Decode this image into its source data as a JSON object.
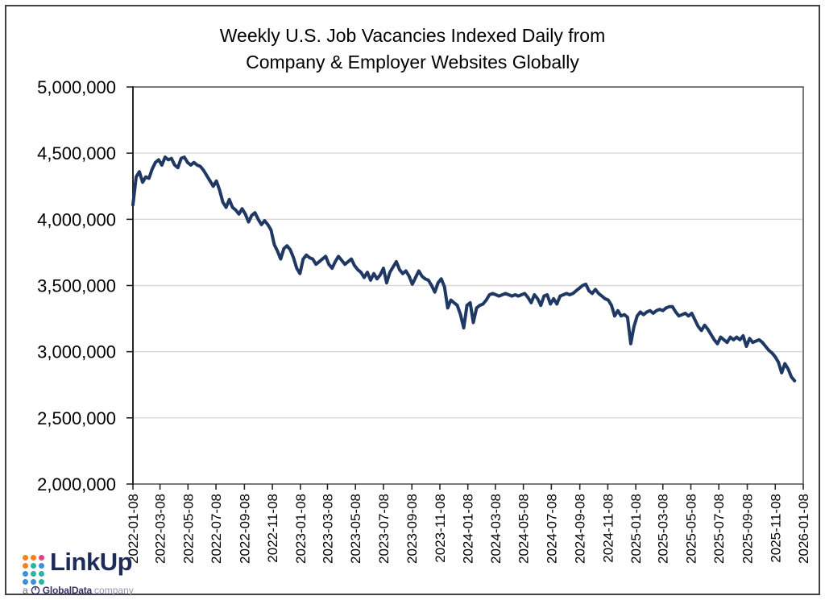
{
  "page": {
    "background": "#ffffff",
    "border_color": "#3f3f46"
  },
  "title": {
    "line1": "Weekly U.S. Job Vacancies Indexed Daily from",
    "line2": "Company & Employer Websites Globally"
  },
  "chart_data": {
    "type": "line",
    "title": "Weekly U.S. Job Vacancies Indexed Daily from Company & Employer Websites Globally",
    "xlabel": "",
    "ylabel": "",
    "x_start": "2022-01-08",
    "x_step_days": 7,
    "x_axis_range": [
      "2022-01-08",
      "2026-01-08"
    ],
    "x_tick_labels": [
      "2022-01-08",
      "2022-03-08",
      "2022-05-08",
      "2022-07-08",
      "2022-09-08",
      "2022-11-08",
      "2023-01-08",
      "2023-03-08",
      "2023-05-08",
      "2023-07-08",
      "2023-09-08",
      "2023-11-08",
      "2024-01-08",
      "2024-03-08",
      "2024-05-08",
      "2024-07-08",
      "2024-09-08",
      "2024-11-08",
      "2025-01-08",
      "2025-03-08",
      "2025-05-08",
      "2025-07-08",
      "2025-09-08",
      "2025-11-08",
      "2026-01-08"
    ],
    "ylim": [
      2000000,
      5000000
    ],
    "y_tick_step": 500000,
    "y_tick_labels": [
      "5,000,000",
      "4,500,000",
      "4,000,000",
      "3,500,000",
      "3,000,000",
      "2,500,000",
      "2,000,000"
    ],
    "grid": "horizontal",
    "gridline_color": "#d9d9d9",
    "frame_color": "#595959",
    "axis_color": "#262626",
    "line_color": "#1f3864",
    "legend": "none",
    "series": [
      {
        "name": "Weekly U.S. job vacancies index",
        "last_data_date": "2025-12-20",
        "values": [
          4110000,
          4320000,
          4360000,
          4280000,
          4320000,
          4310000,
          4380000,
          4430000,
          4450000,
          4410000,
          4470000,
          4450000,
          4460000,
          4410000,
          4390000,
          4460000,
          4470000,
          4430000,
          4410000,
          4430000,
          4410000,
          4400000,
          4370000,
          4330000,
          4290000,
          4250000,
          4290000,
          4220000,
          4130000,
          4090000,
          4150000,
          4090000,
          4070000,
          4040000,
          4080000,
          4040000,
          3980000,
          4030000,
          4050000,
          4000000,
          3960000,
          3990000,
          3960000,
          3920000,
          3810000,
          3760000,
          3700000,
          3780000,
          3800000,
          3770000,
          3710000,
          3630000,
          3590000,
          3700000,
          3730000,
          3710000,
          3700000,
          3660000,
          3680000,
          3700000,
          3720000,
          3660000,
          3630000,
          3680000,
          3720000,
          3690000,
          3660000,
          3680000,
          3700000,
          3650000,
          3620000,
          3600000,
          3560000,
          3600000,
          3540000,
          3590000,
          3550000,
          3580000,
          3630000,
          3520000,
          3600000,
          3640000,
          3680000,
          3620000,
          3590000,
          3610000,
          3570000,
          3510000,
          3560000,
          3610000,
          3570000,
          3550000,
          3540000,
          3500000,
          3450000,
          3520000,
          3550000,
          3490000,
          3330000,
          3390000,
          3370000,
          3350000,
          3280000,
          3180000,
          3350000,
          3370000,
          3220000,
          3330000,
          3350000,
          3360000,
          3390000,
          3430000,
          3440000,
          3430000,
          3420000,
          3430000,
          3440000,
          3430000,
          3420000,
          3430000,
          3420000,
          3430000,
          3440000,
          3410000,
          3370000,
          3430000,
          3400000,
          3350000,
          3420000,
          3430000,
          3360000,
          3400000,
          3360000,
          3420000,
          3430000,
          3440000,
          3430000,
          3440000,
          3460000,
          3480000,
          3500000,
          3510000,
          3460000,
          3440000,
          3470000,
          3440000,
          3420000,
          3400000,
          3390000,
          3350000,
          3270000,
          3310000,
          3270000,
          3280000,
          3260000,
          3060000,
          3190000,
          3270000,
          3300000,
          3280000,
          3300000,
          3310000,
          3290000,
          3310000,
          3320000,
          3310000,
          3330000,
          3340000,
          3340000,
          3300000,
          3270000,
          3280000,
          3290000,
          3270000,
          3290000,
          3240000,
          3190000,
          3160000,
          3200000,
          3170000,
          3130000,
          3090000,
          3060000,
          3110000,
          3090000,
          3070000,
          3110000,
          3090000,
          3110000,
          3090000,
          3120000,
          3040000,
          3100000,
          3070000,
          3080000,
          3090000,
          3070000,
          3040000,
          3010000,
          2990000,
          2960000,
          2920000,
          2840000,
          2910000,
          2870000,
          2810000,
          2780000
        ]
      }
    ]
  },
  "logo": {
    "brand": "LinkUp",
    "brand_color": "#1e2a5a",
    "tagline_prefix": "a",
    "tagline_brand": "GlobalData",
    "tagline_suffix": "company",
    "dot_colors": [
      [
        "#f5821f",
        "#f5821f",
        "#e0457b"
      ],
      [
        "#f5821f",
        "#2bb3a3",
        "#3d8edc"
      ],
      [
        "#3d8edc",
        "#2bb3a3",
        "#2bb3a3"
      ],
      [
        "#3d8edc",
        "#3d8edc",
        "#2bb3a3"
      ]
    ]
  }
}
